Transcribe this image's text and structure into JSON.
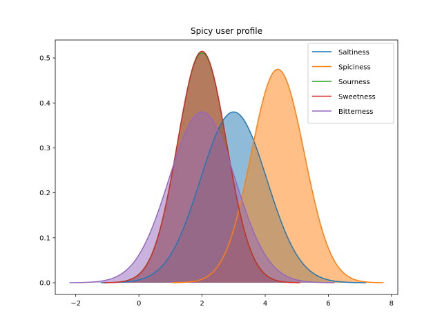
{
  "chart_data": {
    "type": "area",
    "title": "Spicy user profile",
    "xlabel": "",
    "ylabel": "",
    "xlim": [
      -2.65,
      8.2
    ],
    "ylim": [
      -0.026,
      0.54
    ],
    "xticks": [
      -2,
      0,
      2,
      4,
      6,
      8
    ],
    "xtick_labels": [
      "−2",
      "0",
      "2",
      "4",
      "6",
      "8"
    ],
    "yticks": [
      0.0,
      0.1,
      0.2,
      0.3,
      0.4,
      0.5
    ],
    "ytick_labels": [
      "0.0",
      "0.1",
      "0.2",
      "0.3",
      "0.4",
      "0.5"
    ],
    "grid": false,
    "legend_position": "top-right",
    "series": [
      {
        "name": "Saltiness",
        "color": "#1f77b4",
        "fill_alpha": 0.5,
        "mean": 3.0,
        "sd": 1.05,
        "x_range": [
          -1.2,
          7.2
        ]
      },
      {
        "name": "Spiciness",
        "color": "#ff7f0e",
        "fill_alpha": 0.5,
        "mean": 4.4,
        "sd": 0.84,
        "x_range": [
          1.05,
          7.75
        ]
      },
      {
        "name": "Sourness",
        "color": "#2ca02c",
        "fill_alpha": 0.5,
        "mean": 2.0,
        "sd": 0.78,
        "x_range": [
          -1.1,
          5.1
        ]
      },
      {
        "name": "Sweetness",
        "color": "#d62728",
        "fill_alpha": 0.5,
        "mean": 2.0,
        "sd": 0.775,
        "x_range": [
          -1.1,
          5.1
        ]
      },
      {
        "name": "Bitterness",
        "color": "#9467bd",
        "fill_alpha": 0.5,
        "mean": 2.0,
        "sd": 1.05,
        "x_range": [
          -2.2,
          6.2
        ]
      }
    ]
  }
}
